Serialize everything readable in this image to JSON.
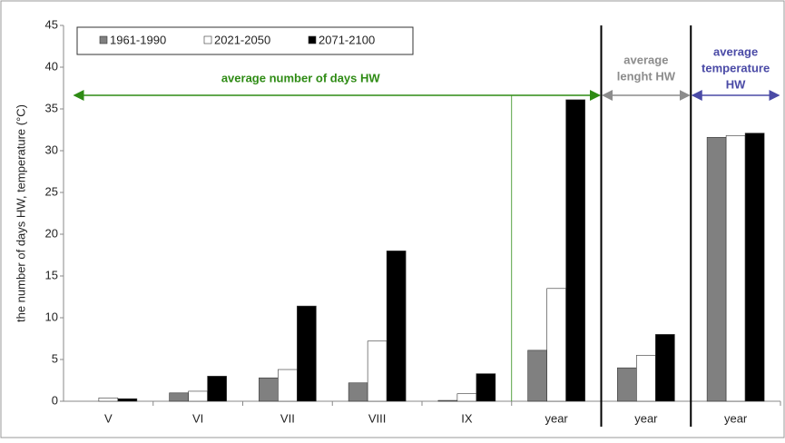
{
  "chart_data": {
    "type": "bar",
    "y_label": "the number of days HW, temperature (°C)",
    "categories": [
      "V",
      "VI",
      "VII",
      "VIII",
      "IX",
      "year",
      "year",
      "year"
    ],
    "series": [
      {
        "name": "1961-1990",
        "color": "#808080",
        "values": [
          0,
          1.0,
          2.8,
          2.2,
          0.1,
          6.1,
          4.0,
          31.6
        ]
      },
      {
        "name": "2021-2050",
        "color": "#ffffff",
        "values": [
          0.4,
          1.2,
          3.8,
          7.2,
          0.9,
          13.5,
          5.5,
          31.8
        ]
      },
      {
        "name": "2071-2100",
        "color": "#000000",
        "values": [
          0.3,
          3.0,
          11.4,
          18.0,
          3.3,
          36.1,
          8.0,
          32.1
        ]
      }
    ],
    "ylim": [
      0,
      45
    ],
    "yticks": [
      0,
      5,
      10,
      15,
      20,
      25,
      30,
      35,
      40,
      45
    ],
    "annotations": [
      {
        "lines": [
          "average number of days HW"
        ],
        "color": "#2e8b14"
      },
      {
        "lines": [
          "average",
          "lenght HW"
        ],
        "color": "#8c8c8c"
      },
      {
        "lines": [
          "average",
          "temperature",
          "HW"
        ],
        "color": "#4a4aa6"
      }
    ]
  }
}
